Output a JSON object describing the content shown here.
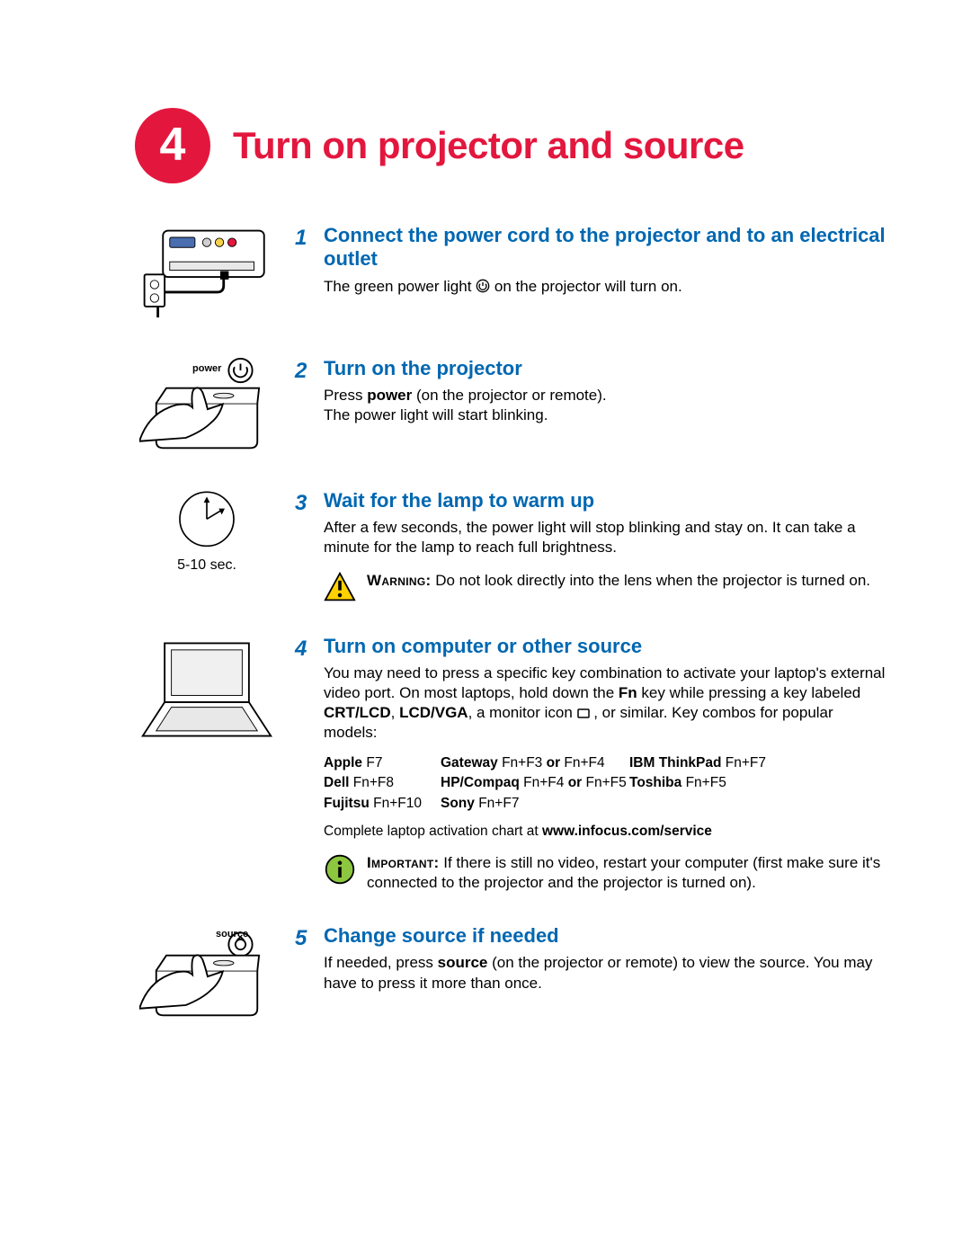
{
  "theme": {
    "accent_red": "#e3173e",
    "accent_blue": "#0067b1",
    "warn_yellow": "#ffd100",
    "info_green": "#8dc63f",
    "text": "#000000",
    "bg": "#ffffff"
  },
  "header": {
    "number": "4",
    "title": "Turn on projector and source"
  },
  "steps": [
    {
      "num": "1",
      "title": "Connect the power cord to the projector and to an electrical outlet",
      "desc_html": "The green power light <svg style='display:inline;vertical-align:-2px' width='16' height='16' viewBox='0 0 24 24'><circle cx='12' cy='12' r='10' fill='none' stroke='#000' stroke-width='2'/><path d='M12 6v6' stroke='#000' stroke-width='2' fill='none'/><path d='M7.5 8.5a6 6 0 1 0 9 0' fill='none' stroke='#000' stroke-width='2'/></svg> on the projector will turn on.",
      "illus": "projector-outlet"
    },
    {
      "num": "2",
      "title": "Turn on the projector",
      "desc_html": "Press <b>power</b> (on the projector or remote).<br>The power light will start blinking.",
      "illus": "hand-press",
      "power_label": "power"
    },
    {
      "num": "3",
      "title": "Wait for the lamp to warm up",
      "desc_html": "After a few seconds, the power light will stop blinking and stay on. It can take a minute for the lamp to reach full brightness.",
      "illus": "clock",
      "illus_caption": "5-10 sec.",
      "callout": {
        "type": "warning",
        "label": "Warning:",
        "text": "Do not look directly into the lens when the projector is turned on."
      }
    },
    {
      "num": "4",
      "title": "Turn on computer or other source",
      "desc_html": "You may need to press a specific key combination to activate your laptop's external video port. On most laptops, hold down the <b>Fn</b> key while pressing a key labeled <b>CRT/LCD</b>, <b>LCD/VGA</b>, a monitor icon <svg style='display:inline;vertical-align:-1px' width='14' height='11' viewBox='0 0 14 11'><rect x='1' y='1' width='12' height='9' rx='1' fill='none' stroke='#000' stroke-width='1.5'/></svg> , or similar. Key combos for popular models:",
      "illus": "laptop",
      "shortcuts": [
        [
          {
            "b": "Apple",
            "t": " F7"
          },
          {
            "b": "Gateway",
            "t": " Fn+F3 ",
            "b2": "or",
            "t2": " Fn+F4"
          },
          {
            "b": "IBM ThinkPad",
            "t": " Fn+F7"
          }
        ],
        [
          {
            "b": "Dell",
            "t": " Fn+F8"
          },
          {
            "b": "HP/Compaq",
            "t": " Fn+F4 ",
            "b2": "or",
            "t2": " Fn+F5"
          },
          {
            "b": "Toshiba",
            "t": " Fn+F5"
          }
        ],
        [
          {
            "b": "Fujitsu",
            "t": " Fn+F10"
          },
          {
            "b": "Sony",
            "t": " Fn+F7"
          },
          null
        ]
      ],
      "footnote_html": "Complete laptop activation chart at <b>www.infocus.com/service</b>",
      "callout": {
        "type": "info",
        "label": "Important:",
        "text": "If there is still no video, restart your computer (first make sure it's connected to the projector and the projector is turned on)."
      }
    },
    {
      "num": "5",
      "title": "Change source if needed",
      "desc_html": "If needed, press <b>source</b> (on the projector or remote) to view the source. You may have to press it more than once.",
      "illus": "hand-press-src",
      "src_label": "source"
    }
  ]
}
